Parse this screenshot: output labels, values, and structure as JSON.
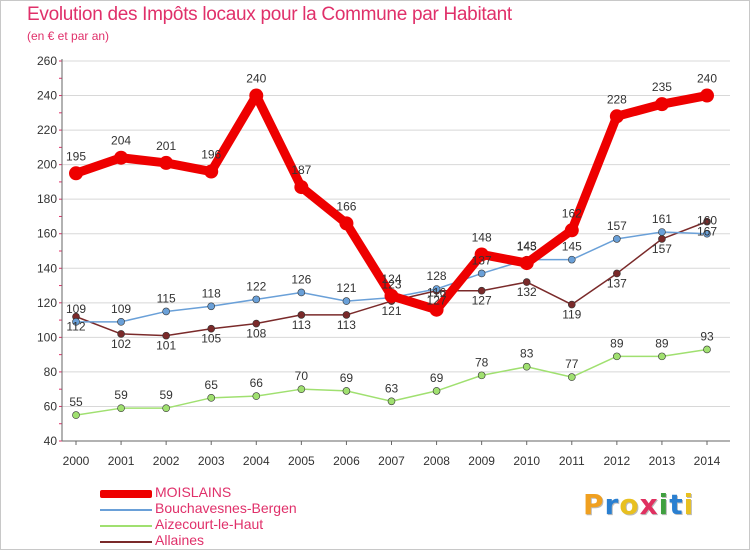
{
  "header": {
    "title": "Evolution des Impôts locaux pour la Commune par Habitant",
    "subtitle": "(en € et par an)"
  },
  "logo": {
    "letters": [
      "P",
      "r",
      "o",
      "x",
      "i",
      "t",
      "i"
    ],
    "colors": [
      "#f0a020",
      "#2a7fd0",
      "#e8c020",
      "#e03060",
      "#40a040",
      "#2a7fd0",
      "#e8c020"
    ]
  },
  "colors": {
    "title": "#e0306a",
    "axis": "#666666",
    "grid": "#d8d8d8"
  },
  "chart_data": {
    "type": "line",
    "title": "Evolution des Impôts locaux pour la Commune par Habitant",
    "subtitle": "(en € et par an)",
    "xlabel": "",
    "ylabel": "",
    "x": [
      2000,
      2001,
      2002,
      2003,
      2004,
      2005,
      2006,
      2007,
      2008,
      2009,
      2010,
      2011,
      2012,
      2013,
      2014
    ],
    "xticks": [
      "2000",
      "2001",
      "2002",
      "2003",
      "2004",
      "2005",
      "2006",
      "2007",
      "2008",
      "2009",
      "2010",
      "2011",
      "2012",
      "2013",
      "2014"
    ],
    "ylim": [
      40,
      260
    ],
    "yticks": [
      40,
      60,
      80,
      100,
      120,
      140,
      160,
      180,
      200,
      220,
      240,
      260
    ],
    "grid": "horizontal",
    "legend_position": "bottom-left",
    "series": [
      {
        "name": "MOISLAINS",
        "color": "#ee0000",
        "values": [
          195,
          204,
          201,
          196,
          240,
          187,
          166,
          124,
          116,
          148,
          143,
          162,
          228,
          235,
          240
        ]
      },
      {
        "name": "Bouchavesnes-Bergen",
        "color": "#6aa0d8",
        "values": [
          109,
          109,
          115,
          118,
          122,
          126,
          121,
          123,
          128,
          137,
          145,
          145,
          157,
          161,
          160
        ]
      },
      {
        "name": "Aizecourt-le-Haut",
        "color": "#a0e070",
        "values": [
          55,
          59,
          59,
          65,
          66,
          70,
          69,
          63,
          69,
          78,
          83,
          77,
          89,
          89,
          93
        ]
      },
      {
        "name": "Allaines",
        "color": "#7a2a2a",
        "values": [
          112,
          102,
          101,
          105,
          108,
          113,
          113,
          121,
          127,
          127,
          132,
          119,
          137,
          157,
          167
        ]
      }
    ]
  }
}
